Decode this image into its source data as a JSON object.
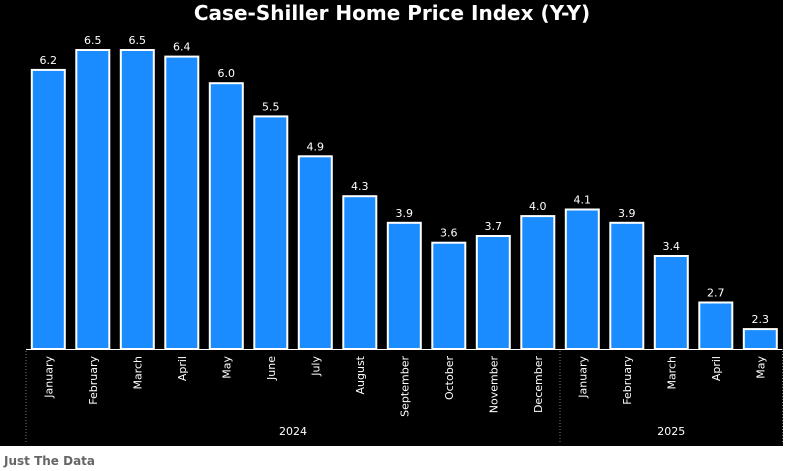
{
  "chart_data": {
    "type": "bar",
    "title": "Case-Shiller Home Price Index (Y-Y)",
    "categories": [
      "January",
      "February",
      "March",
      "April",
      "May",
      "June",
      "July",
      "August",
      "September",
      "October",
      "November",
      "December",
      "January",
      "February",
      "March",
      "April",
      "May"
    ],
    "values": [
      6.2,
      6.5,
      6.5,
      6.4,
      6.0,
      5.5,
      4.9,
      4.3,
      3.9,
      3.6,
      3.7,
      4.0,
      4.1,
      3.9,
      3.4,
      2.7,
      2.3
    ],
    "groups": [
      {
        "label": "2024",
        "start": 0,
        "end": 11
      },
      {
        "label": "2025",
        "start": 12,
        "end": 16
      }
    ],
    "ylim": [
      2.0,
      6.8
    ],
    "grid": false,
    "bar_color": "#1a8cff",
    "background": "#000000"
  },
  "footer": {
    "source": "Just The Data"
  }
}
